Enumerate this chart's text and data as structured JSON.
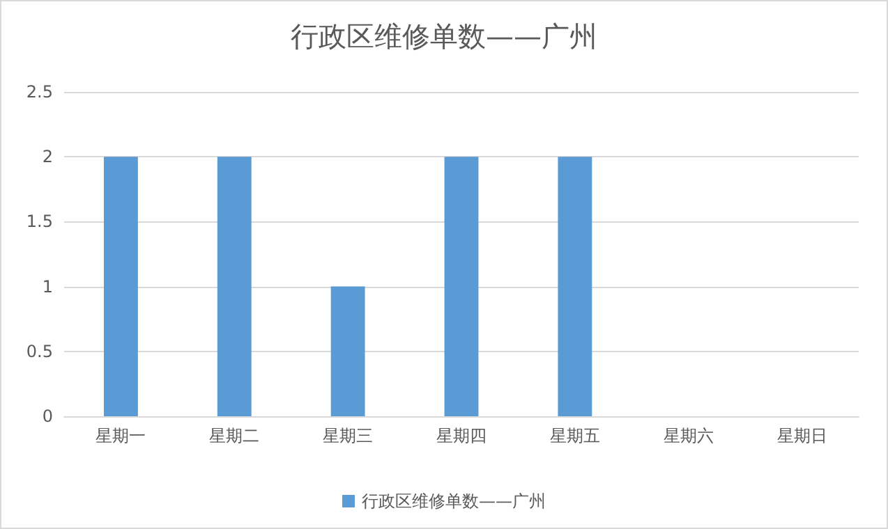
{
  "chart_data": {
    "type": "bar",
    "title": "行政区维修单数——广州",
    "categories": [
      "星期一",
      "星期二",
      "星期三",
      "星期四",
      "星期五",
      "星期六",
      "星期日"
    ],
    "series": [
      {
        "name": "行政区维修单数——广州",
        "color": "#5b9bd5",
        "values": [
          2,
          2,
          1,
          2,
          2,
          0,
          0
        ]
      }
    ],
    "ylim": [
      0,
      2.5
    ],
    "yticks": [
      0,
      0.5,
      1,
      1.5,
      2,
      2.5
    ],
    "grid": "y",
    "legend": "bottom"
  }
}
